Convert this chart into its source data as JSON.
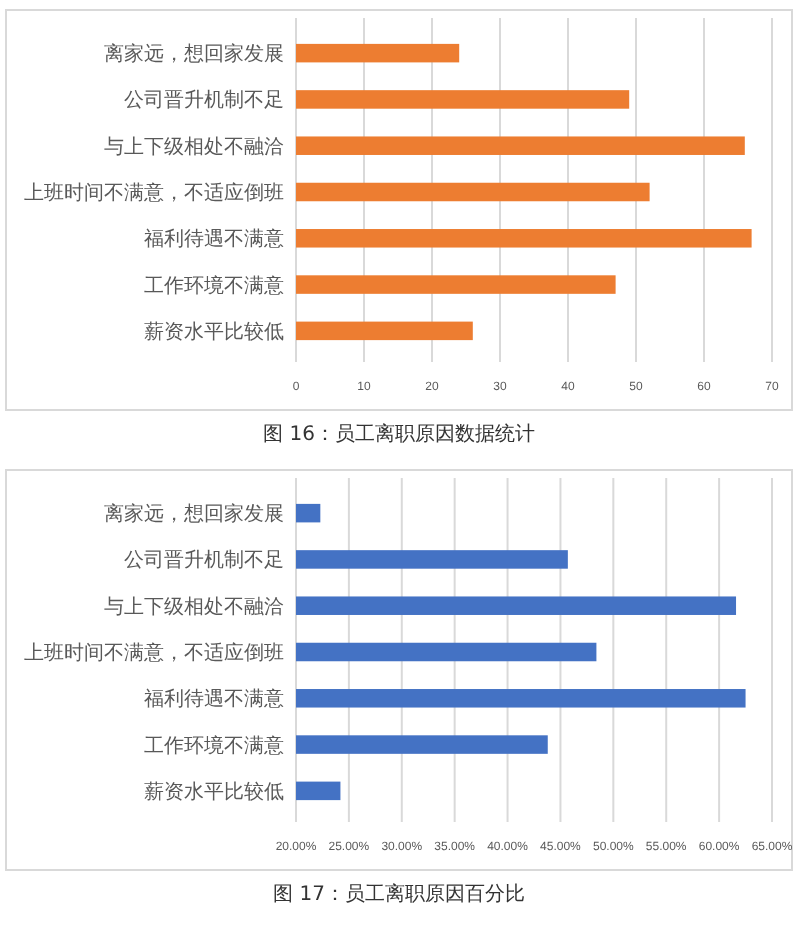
{
  "chart_data": [
    {
      "type": "bar",
      "orientation": "horizontal",
      "title": "图 16：员工离职原因数据统计",
      "categories": [
        "离家远，想回家发展",
        "公司晋升机制不足",
        "与上下级相处不融洽",
        "上班时间不满意，不适应倒班",
        "福利待遇不满意",
        "工作环境不满意",
        "薪资水平比较低"
      ],
      "values": [
        24,
        49,
        66,
        52,
        67,
        47,
        26
      ],
      "color": "#ed7d31",
      "xlim": [
        0,
        70
      ],
      "xticks": [
        0,
        10,
        20,
        30,
        40,
        50,
        60,
        70
      ],
      "grid": "x"
    },
    {
      "type": "bar",
      "orientation": "horizontal",
      "title": "图 17：员工离职原因百分比",
      "categories": [
        "离家远，想回家发展",
        "公司晋升机制不足",
        "与上下级相处不融洽",
        "上班时间不满意，不适应倒班",
        "福利待遇不满意",
        "工作环境不满意",
        "薪资水平比较低"
      ],
      "values": [
        22.3,
        45.7,
        61.6,
        48.4,
        62.5,
        43.8,
        24.2
      ],
      "color": "#4472c4",
      "xlim": [
        20,
        65
      ],
      "xticks": [
        {
          "value": 20,
          "label": "20.00%"
        },
        {
          "value": 25,
          "label": "25.00%"
        },
        {
          "value": 30,
          "label": "30.00%"
        },
        {
          "value": 35,
          "label": "35.00%"
        },
        {
          "value": 40,
          "label": "40.00%"
        },
        {
          "value": 45,
          "label": "45.00%"
        },
        {
          "value": 50,
          "label": "50.00%"
        },
        {
          "value": 55,
          "label": "55.00%"
        },
        {
          "value": 60,
          "label": "60.00%"
        },
        {
          "value": 65,
          "label": "65.00%"
        }
      ],
      "grid": "x"
    }
  ]
}
